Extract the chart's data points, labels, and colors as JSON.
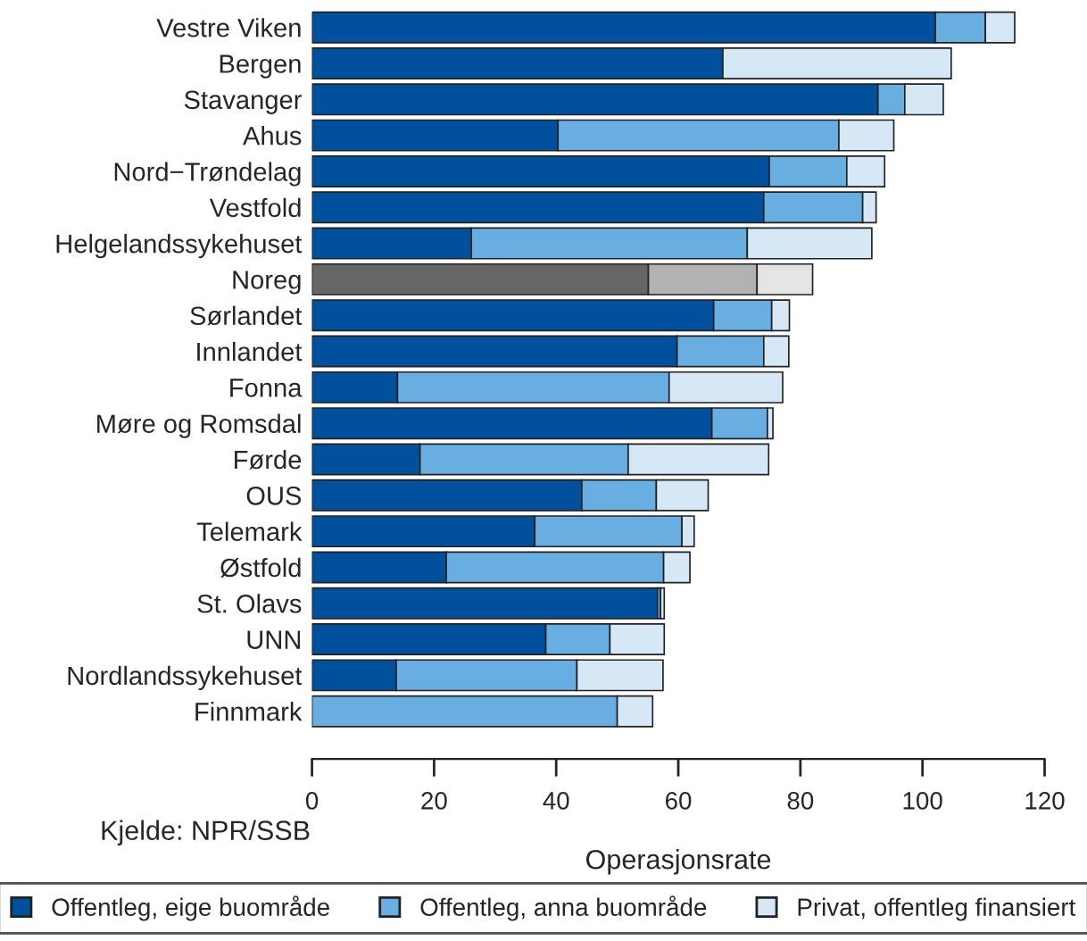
{
  "chart_data": {
    "type": "bar",
    "orientation": "horizontal",
    "stacked": true,
    "categories": [
      "Vestre Viken",
      "Bergen",
      "Stavanger",
      "Ahus",
      "Nord−Trøndelag",
      "Vestfold",
      "Helgelandssykehuset",
      "Noreg",
      "Sørlandet",
      "Innlandet",
      "Fonna",
      "Møre og Romsdal",
      "Førde",
      "OUS",
      "Telemark",
      "Østfold",
      "St. Olavs",
      "UNN",
      "Nordlandssykehuset",
      "Finnmark"
    ],
    "series": [
      {
        "name": "Offentleg, eige buområde",
        "color": "#00509e",
        "colors": [
          "#00509e",
          "#00509e",
          "#00509e",
          "#00509e",
          "#00509e",
          "#00509e",
          "#00509e",
          "#666666",
          "#00509e",
          "#00509e",
          "#00509e",
          "#00509e",
          "#00509e",
          "#00509e",
          "#00509e",
          "#00509e",
          "#00509e",
          "#00509e",
          "#00509e",
          "#00509e"
        ],
        "values": [
          102.1,
          67.3,
          92.7,
          40.3,
          74.9,
          74.0,
          26.1,
          55.1,
          65.8,
          59.8,
          14.0,
          65.5,
          17.7,
          44.2,
          36.5,
          22.0,
          56.6,
          38.3,
          13.8,
          0
        ]
      },
      {
        "name": "Offentleg, anna buområde",
        "color": "#68aee0",
        "colors": [
          "#68aee0",
          "#68aee0",
          "#68aee0",
          "#68aee0",
          "#68aee0",
          "#68aee0",
          "#68aee0",
          "#b2b2b2",
          "#68aee0",
          "#68aee0",
          "#68aee0",
          "#68aee0",
          "#68aee0",
          "#68aee0",
          "#68aee0",
          "#68aee0",
          "#68aee0",
          "#68aee0",
          "#68aee0",
          "#68aee0"
        ],
        "values": [
          8.2,
          0,
          4.4,
          46.0,
          12.7,
          16.2,
          45.2,
          17.8,
          9.5,
          14.2,
          44.5,
          9.1,
          34.1,
          12.2,
          24.1,
          35.6,
          0.5,
          10.5,
          29.6,
          50.0
        ]
      },
      {
        "name": "Privat, offentleg finansiert",
        "color": "#d6e7f6",
        "colors": [
          "#d6e7f6",
          "#d6e7f6",
          "#d6e7f6",
          "#d6e7f6",
          "#d6e7f6",
          "#d6e7f6",
          "#d6e7f6",
          "#e5e5e5",
          "#d6e7f6",
          "#d6e7f6",
          "#d6e7f6",
          "#d6e7f6",
          "#d6e7f6",
          "#d6e7f6",
          "#d6e7f6",
          "#d6e7f6",
          "#d6e7f6",
          "#d6e7f6",
          "#d6e7f6",
          "#d6e7f6"
        ],
        "values": [
          4.8,
          37.4,
          6.3,
          9.0,
          6.2,
          2.2,
          20.4,
          9.1,
          2.9,
          4.1,
          18.6,
          0.9,
          23.0,
          8.5,
          2.0,
          4.3,
          0.6,
          8.9,
          14.1,
          5.8
        ]
      }
    ],
    "xlim": [
      0,
      120
    ],
    "xticks": [
      0,
      20,
      40,
      60,
      80,
      100,
      120
    ],
    "xlabel": "Operasjonsrate",
    "annotations": [
      "Kjelde: NPR/SSB"
    ],
    "legend": "bottom"
  }
}
